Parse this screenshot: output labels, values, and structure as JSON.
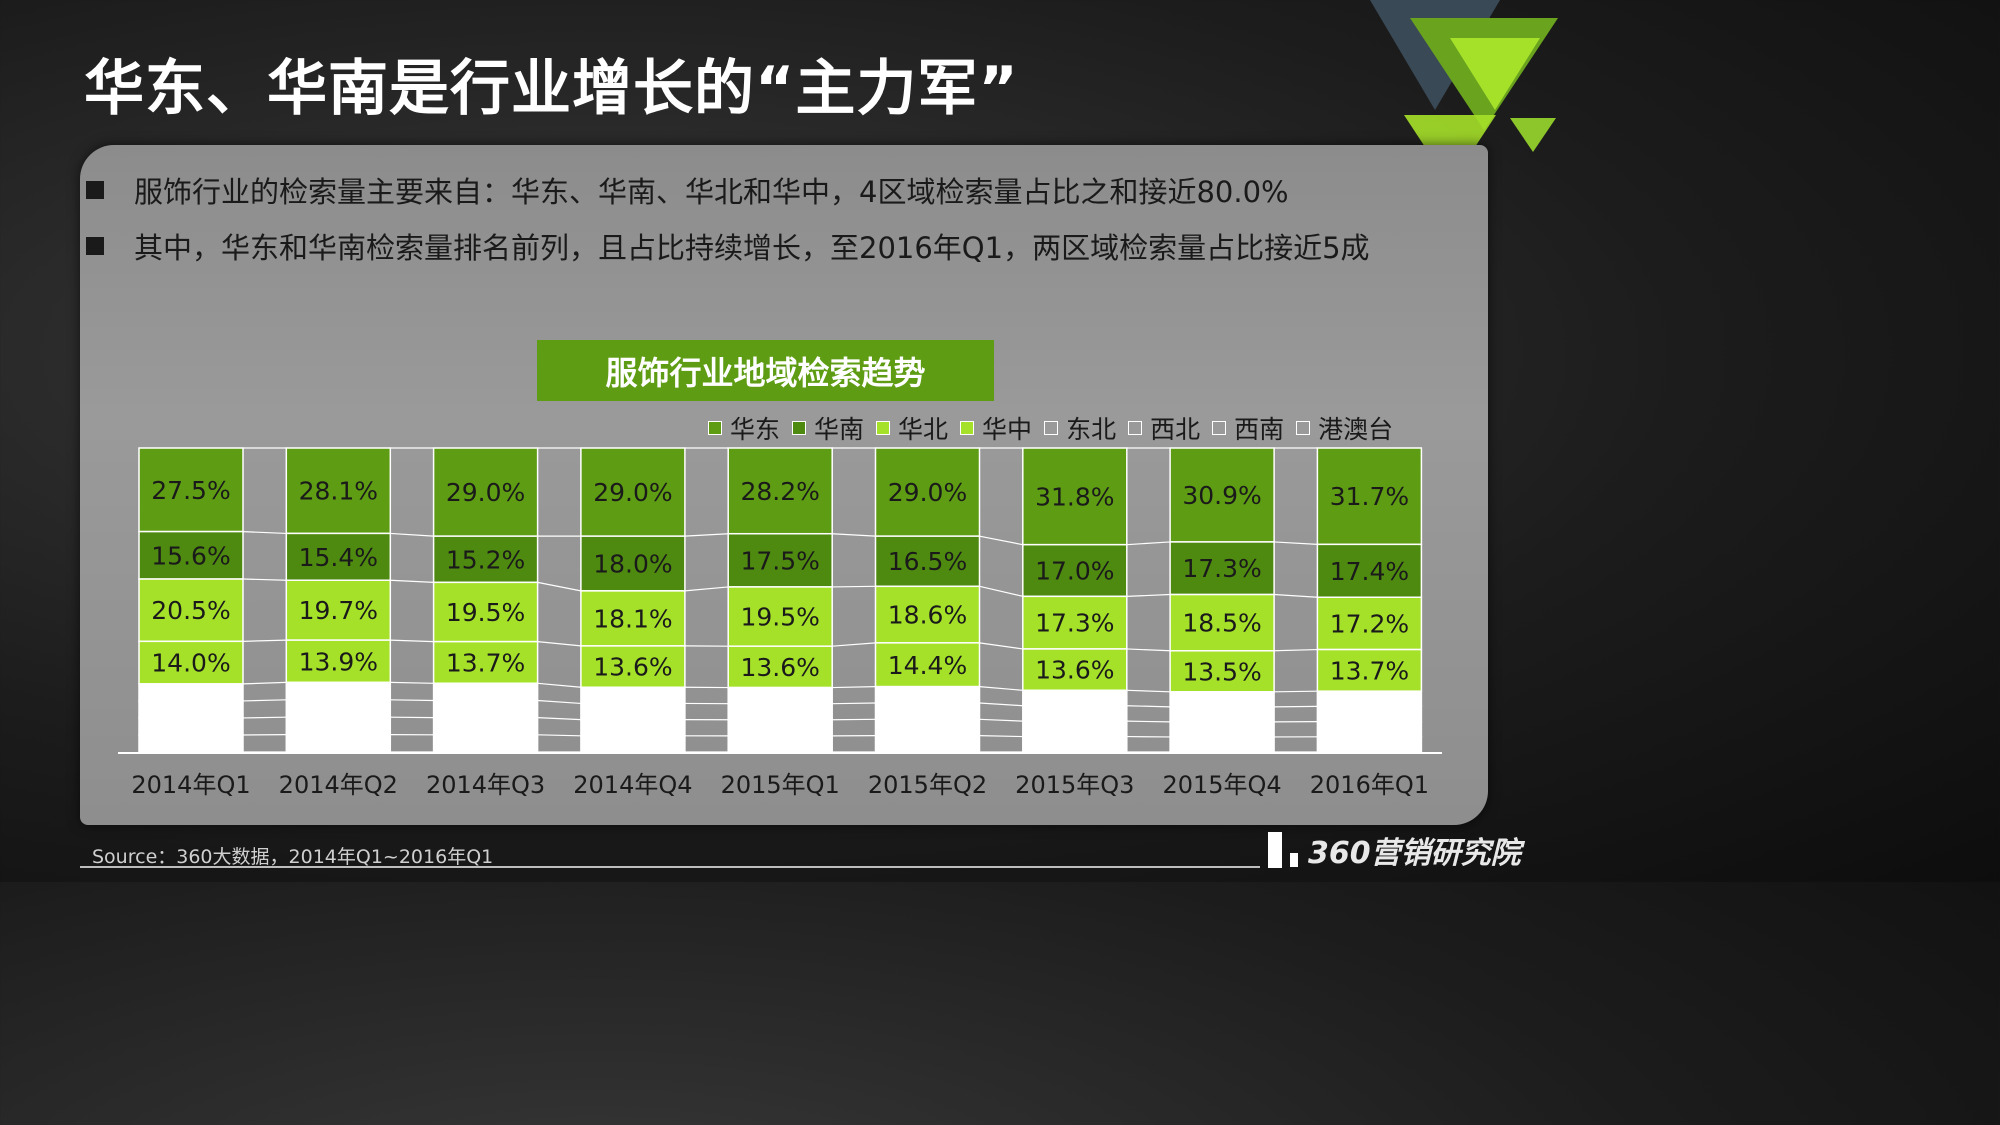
{
  "title": "华东、华南是行业增长的“主力军”",
  "bullets": [
    "服饰行业的检索量主要来自：华东、华南、华北和华中，4区域检索量占比之和接近80.0%",
    "其中，华东和华南检索量排名前列，且占比持续增长，至2016年Q1，两区域检索量占比接近5成"
  ],
  "source": "Source：360大数据，2014年Q1~2016年Q1",
  "logo": "360营销研究院",
  "chart_data": {
    "type": "bar",
    "stacked": "percent",
    "title": "服饰行业地域检索趋势",
    "categories": [
      "2014年Q1",
      "2014年Q2",
      "2014年Q3",
      "2014年Q4",
      "2015年Q1",
      "2015年Q2",
      "2015年Q3",
      "2015年Q4",
      "2016年Q1"
    ],
    "series": [
      {
        "name": "华东",
        "color": "#5e9c13",
        "values": [
          27.5,
          28.1,
          29.0,
          29.0,
          28.2,
          29.0,
          31.8,
          30.9,
          31.7
        ]
      },
      {
        "name": "华南",
        "color": "#4f8a10",
        "values": [
          15.6,
          15.4,
          15.2,
          18.0,
          17.5,
          16.5,
          17.0,
          17.3,
          17.4
        ]
      },
      {
        "name": "华北",
        "color": "#a6e12a",
        "values": [
          20.5,
          19.7,
          19.5,
          18.1,
          19.5,
          18.6,
          17.3,
          18.5,
          17.2
        ]
      },
      {
        "name": "华中",
        "color": "#a6e12a",
        "values": [
          14.0,
          13.9,
          13.7,
          13.6,
          13.6,
          14.4,
          13.6,
          13.5,
          13.7
        ]
      },
      {
        "name": "东北",
        "color": "#ffffff",
        "values": [
          null,
          null,
          null,
          null,
          null,
          null,
          null,
          null,
          null
        ]
      },
      {
        "name": "西北",
        "color": "#ffffff",
        "values": [
          null,
          null,
          null,
          null,
          null,
          null,
          null,
          null,
          null
        ]
      },
      {
        "name": "西南",
        "color": "#ffffff",
        "values": [
          null,
          null,
          null,
          null,
          null,
          null,
          null,
          null,
          null
        ]
      },
      {
        "name": "港澳台",
        "color": "#ffffff",
        "values": [
          null,
          null,
          null,
          null,
          null,
          null,
          null,
          null,
          null
        ]
      }
    ],
    "value_suffix": "%",
    "legend_position": "top-right",
    "ylim": [
      0,
      100
    ],
    "grid": false
  }
}
